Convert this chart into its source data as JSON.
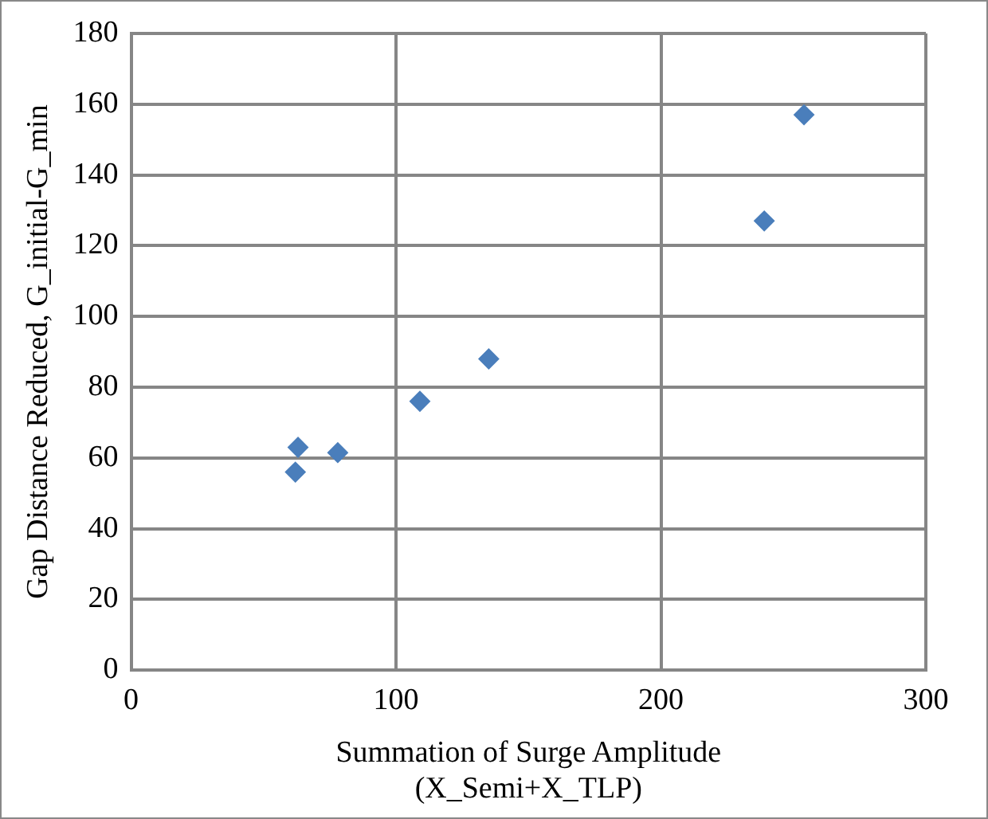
{
  "chart_data": {
    "type": "scatter",
    "xlabel": "Summation of Surge Amplitude\n(X_Semi+X_TLP)",
    "ylabel": "Gap Distance Reduced, G_initial-G_min",
    "x": [
      62,
      63,
      78,
      109,
      135,
      239,
      254
    ],
    "series": [
      {
        "color": "#4a7ebb",
        "values": [
          56,
          63,
          61.5,
          76,
          88,
          127,
          157
        ]
      }
    ],
    "xlim": [
      0,
      300
    ],
    "xticks": [
      0,
      100,
      200,
      300
    ],
    "ylim": [
      0,
      180
    ],
    "yticks": [
      0,
      20,
      40,
      60,
      80,
      100,
      120,
      140,
      160,
      180
    ],
    "grid": true,
    "legend": false,
    "marker": "diamond"
  }
}
